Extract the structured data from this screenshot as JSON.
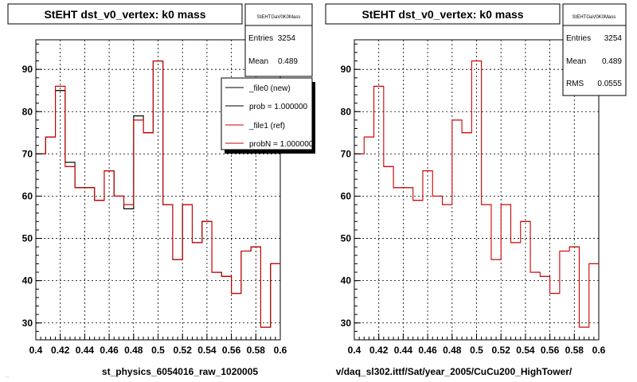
{
  "footer_fragment": "…",
  "panels": [
    {
      "title": "StEHT dst_v0_vertex: k0 mass",
      "stats_box": {
        "name": "StEHTGaV0K0Mass",
        "rows": [
          {
            "label": "Entries",
            "value": "3254"
          },
          {
            "label": "Mean",
            "value": "0.489"
          }
        ]
      },
      "legend": [
        {
          "label": "_file0 (new)",
          "color": "#000000"
        },
        {
          "label": "prob = 1.000000",
          "color": "#000000"
        },
        {
          "label": "_file1 (ref)",
          "color": "#cc0000"
        },
        {
          "label": "probN = 1.000000",
          "color": "#cc0000"
        }
      ],
      "xlabel": "st_physics_6054016_raw_1020005"
    },
    {
      "title": "StEHT dst_v0_vertex: k0 mass",
      "stats_box": {
        "name": "StEHTGaV0K0Mass",
        "rows": [
          {
            "label": "Entries",
            "value": "3254"
          },
          {
            "label": "Mean",
            "value": "0.489"
          },
          {
            "label": "RMS",
            "value": "0.0555"
          }
        ]
      },
      "legend": [],
      "xlabel": "v/daq_sl302.ittf/Sat/year_2005/CuCu200_HighTower/"
    }
  ],
  "chart_data": [
    {
      "type": "histogram",
      "title": "StEHT dst_v0_vertex: k0 mass",
      "xlabel": "st_physics_6054016_raw_1020005",
      "ylabel": "",
      "xlim": [
        0.4,
        0.6
      ],
      "ylim": [
        26,
        97
      ],
      "x_ticks": [
        "0.4",
        "0.42",
        "0.44",
        "0.46",
        "0.48",
        "0.5",
        "0.52",
        "0.54",
        "0.56",
        "0.58",
        "0.6"
      ],
      "y_ticks": [
        "30",
        "40",
        "50",
        "60",
        "70",
        "80",
        "90"
      ],
      "grid": true,
      "bin_edges": [
        0.4,
        0.408,
        0.416,
        0.424,
        0.432,
        0.44,
        0.448,
        0.456,
        0.464,
        0.472,
        0.48,
        0.488,
        0.496,
        0.504,
        0.512,
        0.52,
        0.528,
        0.536,
        0.544,
        0.552,
        0.56,
        0.568,
        0.576,
        0.584,
        0.592,
        0.6
      ],
      "series": [
        {
          "name": "_file0 (new)",
          "color": "#000000",
          "values": [
            70,
            74,
            85,
            68,
            62,
            62,
            59,
            66,
            60,
            57,
            79,
            75,
            92,
            58,
            45,
            58,
            49,
            54,
            42,
            41,
            37,
            47,
            48,
            29,
            44
          ]
        },
        {
          "name": "_file1 (ref)",
          "color": "#cc0000",
          "values": [
            70,
            74,
            86,
            67,
            62,
            62,
            59,
            66,
            60,
            58,
            78,
            75,
            92,
            58,
            45,
            58,
            49,
            54,
            42,
            41,
            37,
            47,
            48,
            29,
            44
          ]
        }
      ]
    },
    {
      "type": "histogram",
      "title": "StEHT dst_v0_vertex: k0 mass",
      "xlabel": "v/daq_sl302.ittf/Sat/year_2005/CuCu200_HighTower/",
      "ylabel": "",
      "xlim": [
        0.4,
        0.6
      ],
      "ylim": [
        26,
        97
      ],
      "x_ticks": [
        "0.4",
        "0.42",
        "0.44",
        "0.46",
        "0.48",
        "0.5",
        "0.52",
        "0.54",
        "0.56",
        "0.58",
        "0.6"
      ],
      "y_ticks": [
        "30",
        "40",
        "50",
        "60",
        "70",
        "80",
        "90"
      ],
      "grid": true,
      "bin_edges": [
        0.4,
        0.408,
        0.416,
        0.424,
        0.432,
        0.44,
        0.448,
        0.456,
        0.464,
        0.472,
        0.48,
        0.488,
        0.496,
        0.504,
        0.512,
        0.52,
        0.528,
        0.536,
        0.544,
        0.552,
        0.56,
        0.568,
        0.576,
        0.584,
        0.592,
        0.6
      ],
      "series": [
        {
          "name": "",
          "color": "#cc0000",
          "values": [
            70,
            74,
            86,
            67,
            62,
            62,
            59,
            66,
            60,
            58,
            78,
            75,
            92,
            58,
            45,
            58,
            49,
            54,
            42,
            41,
            37,
            47,
            48,
            29,
            44
          ]
        }
      ]
    }
  ]
}
